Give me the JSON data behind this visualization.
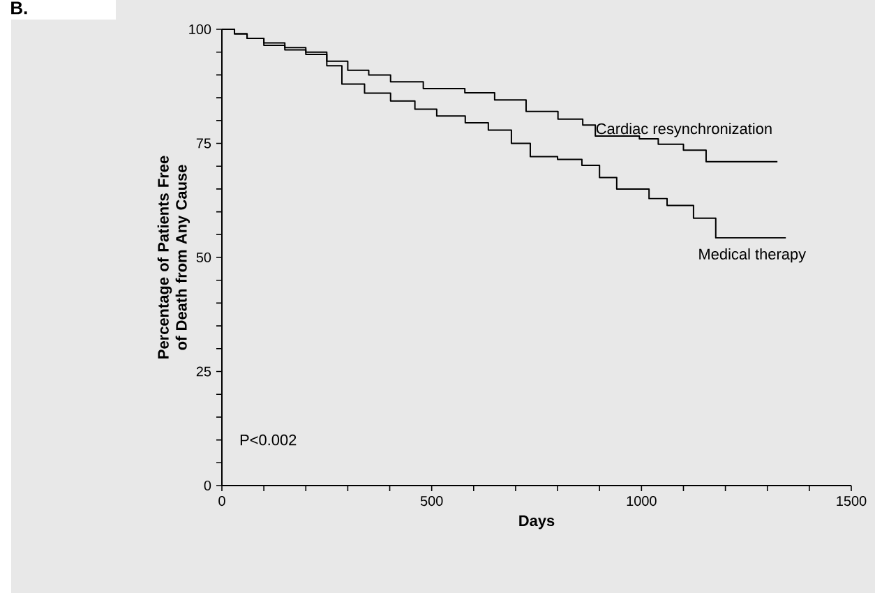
{
  "chart_data": {
    "type": "step",
    "xlabel": "Days",
    "ylabel": "Percentage of Patients Free of Death from Any Cause",
    "xlim": [
      0,
      1500
    ],
    "ylim": [
      0,
      100
    ],
    "xticks": [
      0,
      {
        "value": 100,
        "label": null
      },
      {
        "value": 200,
        "label": null
      },
      {
        "value": 300,
        "label": null
      },
      {
        "value": 400,
        "label": null
      },
      500,
      {
        "value": 600,
        "label": null
      },
      {
        "value": 700,
        "label": null
      },
      {
        "value": 800,
        "label": null
      },
      {
        "value": 900,
        "label": null
      },
      1000,
      {
        "value": 1100,
        "label": null
      },
      {
        "value": 1200,
        "label": null
      },
      {
        "value": 1300,
        "label": null
      },
      {
        "value": 1400,
        "label": null
      },
      1500
    ],
    "yticks": [
      0,
      {
        "value": 5,
        "label": null
      },
      {
        "value": 10,
        "label": null
      },
      {
        "value": 15,
        "label": null
      },
      {
        "value": 20,
        "label": null
      },
      25,
      {
        "value": 30,
        "label": null
      },
      {
        "value": 35,
        "label": null
      },
      {
        "value": 40,
        "label": null
      },
      {
        "value": 45,
        "label": null
      },
      50,
      {
        "value": 55,
        "label": null
      },
      {
        "value": 60,
        "label": null
      },
      {
        "value": 65,
        "label": null
      },
      {
        "value": 70,
        "label": null
      },
      75,
      {
        "value": 80,
        "label": null
      },
      {
        "value": 85,
        "label": null
      },
      {
        "value": 90,
        "label": null
      },
      {
        "value": 95,
        "label": null
      },
      100
    ],
    "series": [
      {
        "name": "Cardiac resynchronization",
        "color": "#000000",
        "x": [
          0,
          30,
          60,
          100,
          150,
          200,
          250,
          300,
          350,
          402,
          480,
          579,
          650,
          725,
          801,
          860,
          890,
          995,
          1040,
          1100,
          1154,
          1324
        ],
        "values": [
          100,
          99,
          98,
          97,
          96,
          95,
          93,
          91,
          90,
          88.5,
          87,
          86.1,
          84.5,
          82,
          80.3,
          79,
          76.6,
          76,
          74.8,
          73.5,
          71,
          71
        ]
      },
      {
        "name": "Medical therapy",
        "color": "#000000",
        "x": [
          0,
          30,
          60,
          100,
          150,
          200,
          250,
          286,
          340,
          402,
          460,
          512,
          580,
          635,
          690,
          735,
          800,
          858,
          900,
          941,
          1018,
          1061,
          1124,
          1177,
          1344
        ],
        "values": [
          100,
          99,
          98,
          96.5,
          95.5,
          94.5,
          92,
          88,
          86,
          84.3,
          82.5,
          81,
          79.5,
          77.9,
          75,
          72.1,
          71.5,
          70.2,
          67.5,
          65,
          62.9,
          61.4,
          58.6,
          54.3,
          54.3
        ]
      }
    ],
    "annotations": [
      "B.",
      "P<0.002"
    ]
  }
}
